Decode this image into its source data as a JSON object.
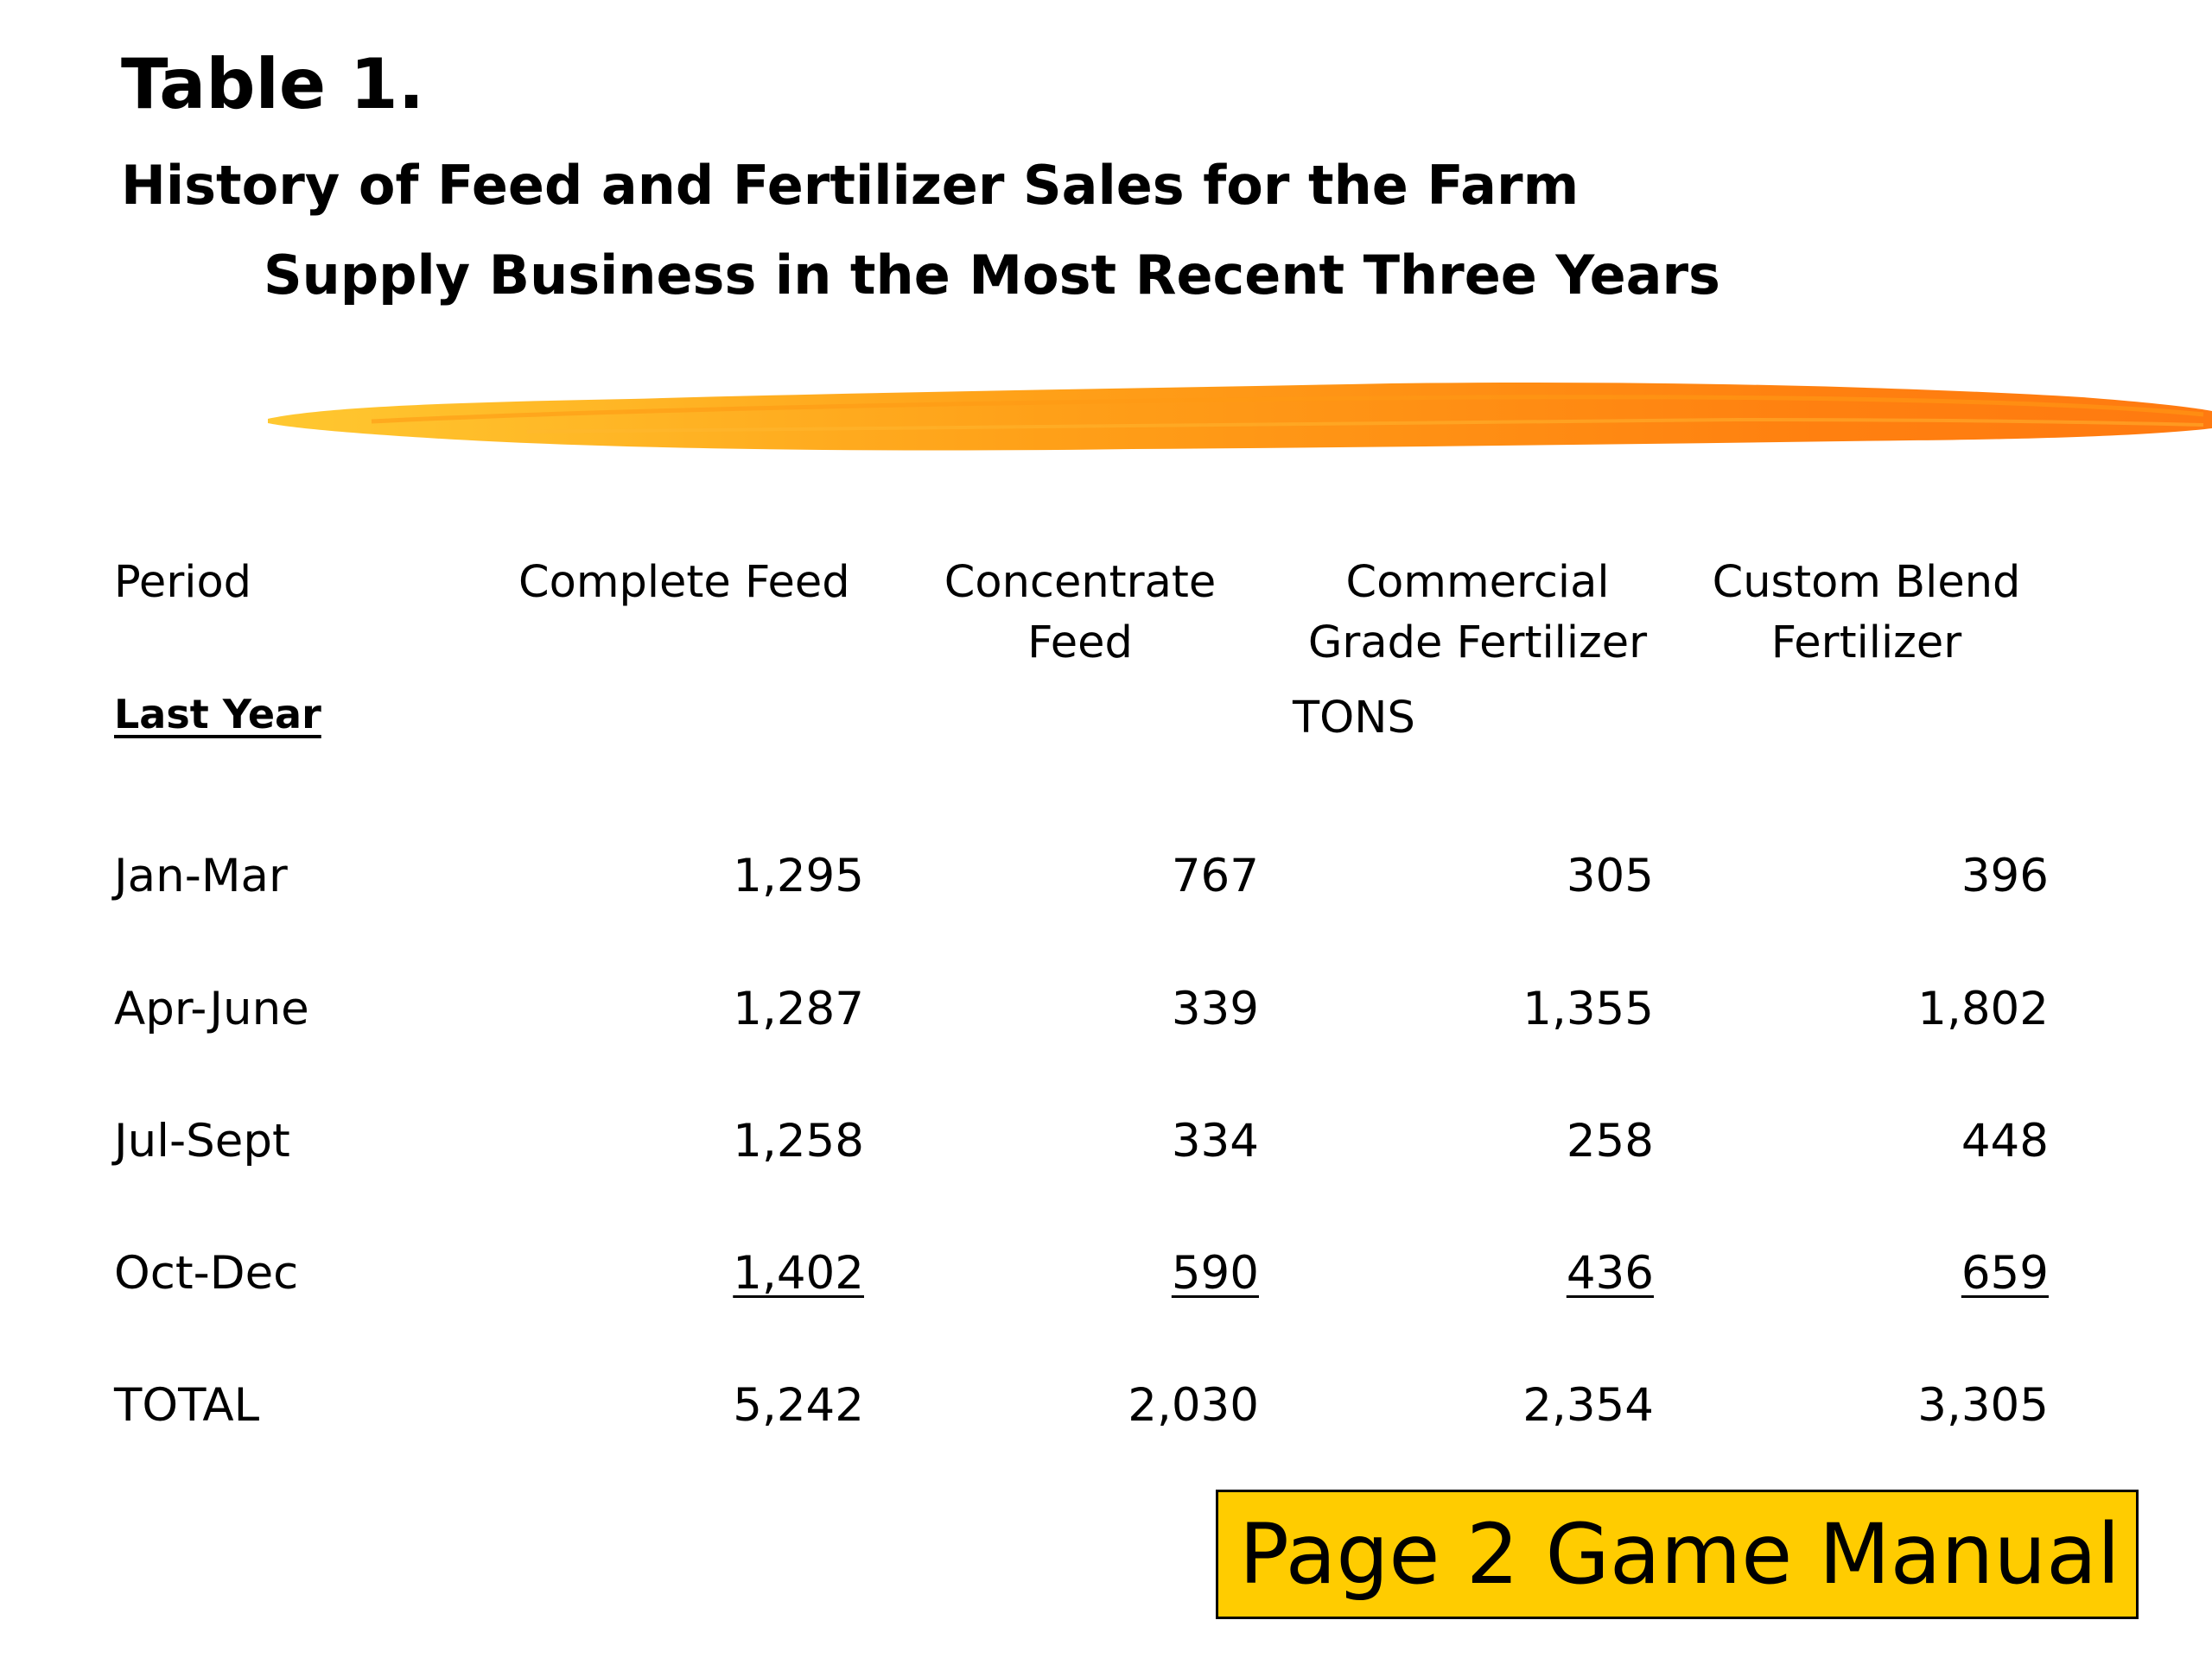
{
  "title": "Table 1.",
  "subtitle_line1": "History of Feed and Fertilizer Sales for the Farm",
  "subtitle_line2": "Supply Business in the Most Recent Three Years",
  "brush_colors": [
    "#ffc020",
    "#ff9a10",
    "#ff7a10"
  ],
  "table": {
    "headers": {
      "period": "Period",
      "complete_feed": "Complete Feed",
      "concentrate_feed_1": "Concentrate",
      "concentrate_feed_2": "Feed",
      "commercial_1": "Commercial",
      "commercial_2": "Grade Fertilizer",
      "custom_1": "Custom Blend",
      "custom_2": "Fertilizer"
    },
    "section_label": "Last Year",
    "units_label": "TONS",
    "rows": [
      {
        "period": "Jan-Mar",
        "complete_feed": "1,295",
        "concentrate_feed": "767",
        "commercial_fertilizer": "305",
        "custom_blend": "396"
      },
      {
        "period": "Apr-June",
        "complete_feed": "1,287",
        "concentrate_feed": "339",
        "commercial_fertilizer": "1,355",
        "custom_blend": "1,802"
      },
      {
        "period": "Jul-Sept",
        "complete_feed": "1,258",
        "concentrate_feed": "334",
        "commercial_fertilizer": "258",
        "custom_blend": "448"
      },
      {
        "period": "Oct-Dec",
        "complete_feed": "1,402",
        "concentrate_feed": "590",
        "commercial_fertilizer": "436",
        "custom_blend": "659"
      },
      {
        "period": "TOTAL",
        "complete_feed": "5,242",
        "concentrate_feed": "2,030",
        "commercial_fertilizer": "2,354",
        "custom_blend": "3,305"
      }
    ]
  },
  "badge": {
    "text": "Page 2 Game Manual",
    "color": "#ffcc00"
  }
}
